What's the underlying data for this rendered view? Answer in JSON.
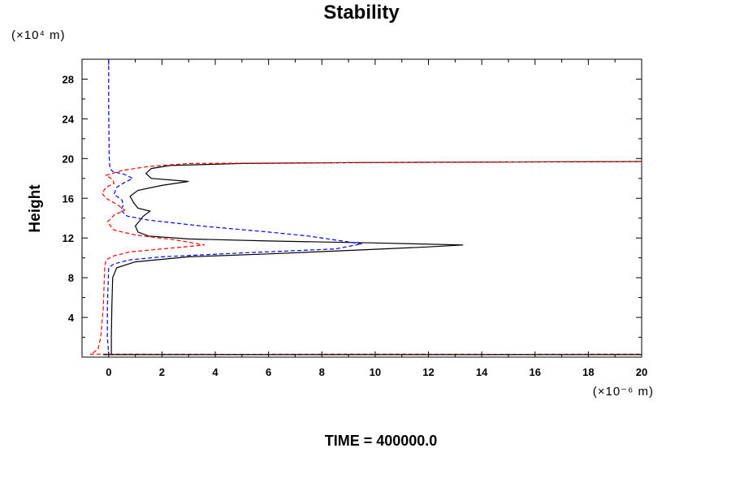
{
  "chart_data": {
    "type": "line",
    "title": "Stability",
    "ylabel": "Height",
    "xlabel": "",
    "y_unit": "(×10⁴ m)",
    "x_unit": "(×10⁻⁶ m)",
    "xlim": [
      -1,
      20
    ],
    "ylim": [
      0,
      30
    ],
    "x_ticks": [
      0,
      2,
      4,
      6,
      8,
      10,
      12,
      14,
      16,
      18,
      20
    ],
    "y_ticks": [
      4,
      8,
      12,
      16,
      20,
      24,
      28
    ],
    "grid": false,
    "series": [
      {
        "color": "#000000",
        "style": "solid",
        "points": [
          [
            0.1,
            0.3
          ],
          [
            0.1,
            2
          ],
          [
            0.12,
            5
          ],
          [
            0.15,
            8
          ],
          [
            0.3,
            9
          ],
          [
            1,
            9.6
          ],
          [
            3,
            10.1
          ],
          [
            6,
            10.4
          ],
          [
            9.5,
            10.8
          ],
          [
            12,
            11.1
          ],
          [
            13.3,
            11.3
          ],
          [
            10,
            11.5
          ],
          [
            6,
            11.7
          ],
          [
            3,
            11.9
          ],
          [
            1.5,
            12.2
          ],
          [
            1.1,
            12.6
          ],
          [
            1.0,
            13.2
          ],
          [
            1.3,
            14.2
          ],
          [
            1.55,
            14.7
          ],
          [
            1.1,
            15
          ],
          [
            0.95,
            15.5
          ],
          [
            0.8,
            16.2
          ],
          [
            1.1,
            16.8
          ],
          [
            2,
            17.3
          ],
          [
            3,
            17.7
          ],
          [
            1.6,
            18
          ],
          [
            1.4,
            18.5
          ],
          [
            1.6,
            19
          ],
          [
            2.3,
            19.3
          ],
          [
            5,
            19.5
          ],
          [
            10,
            19.6
          ],
          [
            20,
            19.7
          ]
        ]
      },
      {
        "color": "#0000ff",
        "style": "dashed",
        "points": [
          [
            0,
            30
          ],
          [
            0,
            25
          ],
          [
            0.02,
            20
          ],
          [
            0.05,
            19
          ],
          [
            0.15,
            18.7
          ],
          [
            0.6,
            18.4
          ],
          [
            0.9,
            18.0
          ],
          [
            0.6,
            17.6
          ],
          [
            0.3,
            17.1
          ],
          [
            0.2,
            16.4
          ],
          [
            0.5,
            15.8
          ],
          [
            0.55,
            15.3
          ],
          [
            0.45,
            14.8
          ],
          [
            0.7,
            14.2
          ],
          [
            1.5,
            13.8
          ],
          [
            3.5,
            13.2
          ],
          [
            6,
            12.6
          ],
          [
            7.5,
            12.2
          ],
          [
            9.5,
            11.4
          ],
          [
            8.5,
            10.9
          ],
          [
            5,
            10.5
          ],
          [
            2,
            10.1
          ],
          [
            0.8,
            9.8
          ],
          [
            0.2,
            9.4
          ],
          [
            0,
            9
          ],
          [
            -0.05,
            5
          ],
          [
            -0.05,
            2
          ],
          [
            0,
            0.3
          ]
        ]
      },
      {
        "color": "#ff0000",
        "style": "dashed",
        "points": [
          [
            20,
            19.7
          ],
          [
            10,
            19.6
          ],
          [
            3,
            19.5
          ],
          [
            1.5,
            19.2
          ],
          [
            0.5,
            18.8
          ],
          [
            -0.1,
            18.3
          ],
          [
            0.15,
            17.9
          ],
          [
            0.2,
            17.5
          ],
          [
            -0.1,
            17.1
          ],
          [
            -0.25,
            16.5
          ],
          [
            -0.1,
            16.0
          ],
          [
            0.3,
            15.4
          ],
          [
            0.6,
            14.8
          ],
          [
            0.2,
            14.3
          ],
          [
            -0.05,
            13.6
          ],
          [
            0.2,
            12.8
          ],
          [
            1,
            12.3
          ],
          [
            2.5,
            11.8
          ],
          [
            3.6,
            11.3
          ],
          [
            2,
            10.9
          ],
          [
            0.8,
            10.6
          ],
          [
            0.2,
            10.2
          ],
          [
            -0.1,
            9.8
          ],
          [
            -0.15,
            9
          ],
          [
            -0.2,
            5
          ],
          [
            -0.3,
            2
          ],
          [
            -0.4,
            0.8
          ],
          [
            -0.6,
            0.4
          ]
        ]
      },
      {
        "color": "#ff0000",
        "style": "dashed",
        "points": [
          [
            -0.7,
            0.3
          ],
          [
            5,
            0.28
          ],
          [
            10,
            0.3
          ],
          [
            15,
            0.28
          ],
          [
            20,
            0.3
          ]
        ]
      },
      {
        "color": "#000000",
        "style": "solid",
        "points": [
          [
            -0.2,
            0.25
          ],
          [
            20,
            0.25
          ]
        ]
      }
    ]
  },
  "footer": {
    "time_label": "TIME = 400000.0"
  }
}
